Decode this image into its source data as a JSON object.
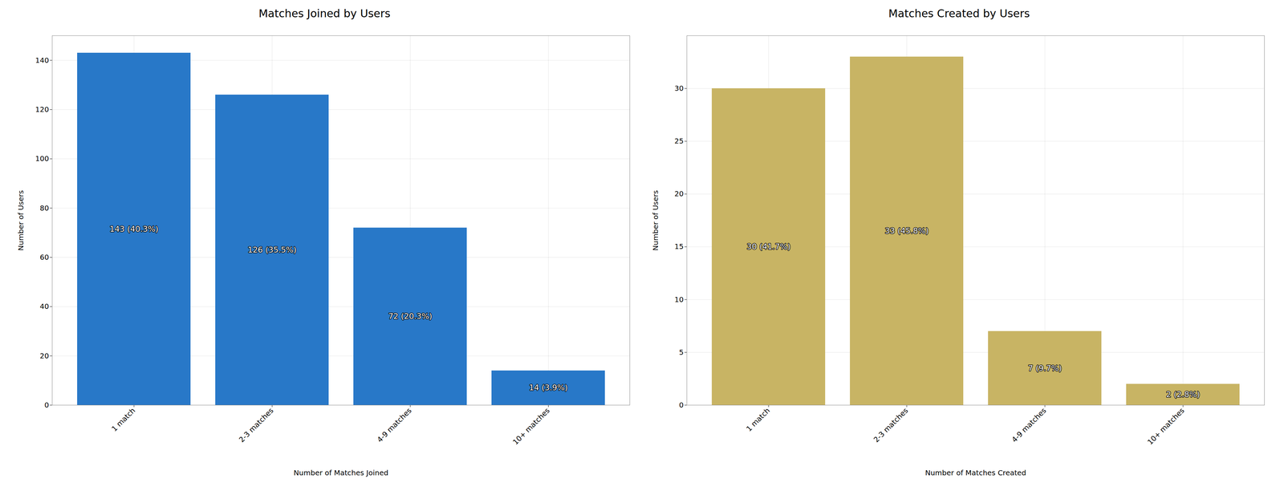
{
  "chart_data": [
    {
      "type": "bar",
      "title": "Matches Joined by Users",
      "xlabel": "Number of Matches Joined",
      "ylabel": "Number of Users",
      "categories": [
        "1 match",
        "2-3 matches",
        "4-9 matches",
        "10+ matches"
      ],
      "values": [
        143,
        126,
        72,
        14
      ],
      "value_labels": [
        "143 (40.3%)",
        "126 (35.5%)",
        "72 (20.3%)",
        "14 (3.9%)"
      ],
      "color": "#2878C8",
      "ylim": [
        0,
        150
      ],
      "yticks": [
        0,
        20,
        40,
        60,
        80,
        100,
        120,
        140
      ],
      "grid": true,
      "data_labels": true
    },
    {
      "type": "bar",
      "title": "Matches Created by Users",
      "xlabel": "Number of Matches Created",
      "ylabel": "Number of Users",
      "categories": [
        "1 match",
        "2-3 matches",
        "4-9 matches",
        "10+ matches"
      ],
      "values": [
        30,
        33,
        7,
        2
      ],
      "value_labels": [
        "30 (41.7%)",
        "33 (45.8%)",
        "7 (9.7%)",
        "2 (2.8%)"
      ],
      "color": "#C8B464",
      "ylim": [
        0,
        35
      ],
      "yticks": [
        0,
        5,
        10,
        15,
        20,
        25,
        30
      ],
      "grid": true,
      "data_labels": true
    }
  ]
}
